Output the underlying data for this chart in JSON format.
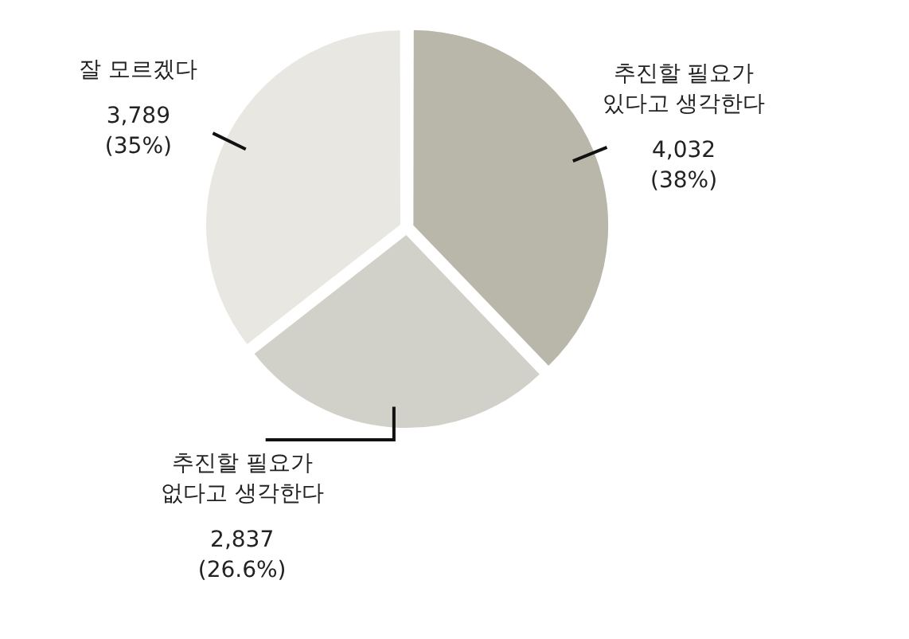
{
  "chart_data": {
    "type": "pie",
    "categories": [
      "추진할 필요가 있다고 생각한다",
      "추진할 필요가 없다고 생각한다",
      "잘 모르겠다"
    ],
    "values": [
      4032,
      2837,
      3789
    ],
    "colors": [
      "#b9b7aa",
      "#d2d1c9",
      "#e8e7e2"
    ],
    "value_labels": [
      "4,032 (38%)",
      "2,837 (26.6%)",
      "3,789 (35%)"
    ],
    "legend": false
  }
}
